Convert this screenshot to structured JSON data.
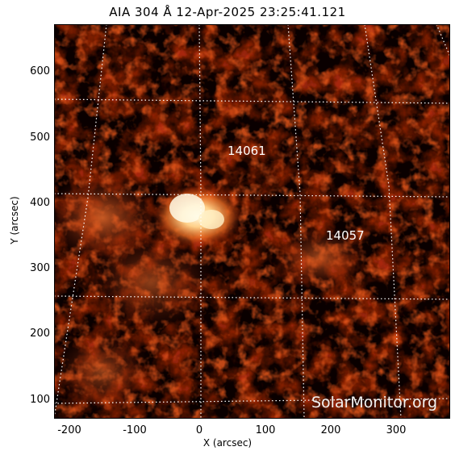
{
  "title": "AIA 304 Å 12-Apr-2025 23:25:41.121",
  "x_axis": {
    "label": "X (arcsec)",
    "ticks": [
      "-200",
      "-100",
      "0",
      "100",
      "200",
      "300"
    ]
  },
  "y_axis": {
    "label": "Y (arcsec)",
    "ticks": [
      "600",
      "500",
      "400",
      "300",
      "200",
      "100"
    ]
  },
  "regions": [
    "14061",
    "14057"
  ],
  "watermark": "SolarMonitor.org",
  "colors": {
    "background": "#0a0000",
    "emission_dim": "#5a0c00",
    "emission_mid": "#c0300a",
    "emission_bright": "#ffe9b0",
    "grid": "#ffffff"
  }
}
